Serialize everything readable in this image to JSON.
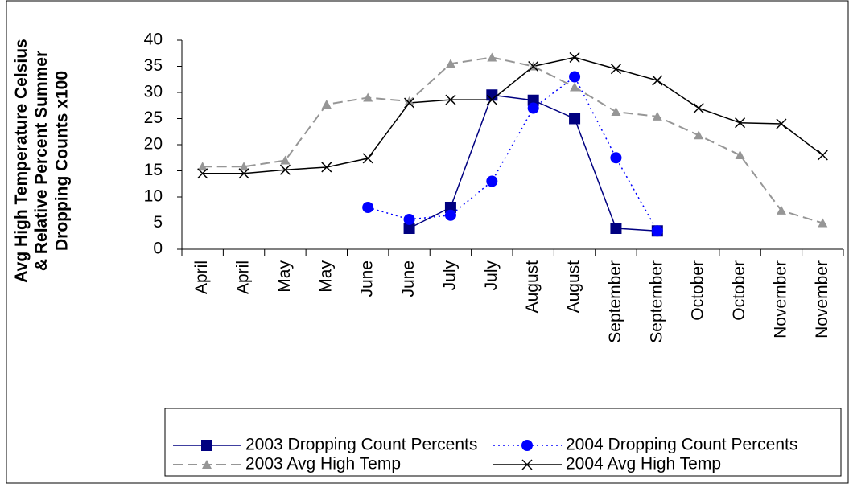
{
  "chart_data": {
    "type": "line",
    "y_label": "Avg High Temperature Celsius & Relative Percent Summer Dropping Counts x100",
    "categories": [
      "April",
      "April",
      "May",
      "May",
      "June",
      "June",
      "July",
      "July",
      "August",
      "August",
      "September",
      "September",
      "October",
      "October",
      "November",
      "November"
    ],
    "ylim": [
      0,
      40
    ],
    "yticks": [
      0,
      5,
      10,
      15,
      20,
      25,
      30,
      35,
      40
    ],
    "series": [
      {
        "name": "2003 Dropping Count Percents",
        "color": "#000080",
        "marker": "square",
        "dash": "solid",
        "values": [
          null,
          null,
          null,
          null,
          null,
          4,
          8,
          29.5,
          28.5,
          25,
          4,
          3.5,
          null,
          null,
          null,
          null
        ]
      },
      {
        "name": "2004 Dropping Count Percents",
        "color": "#0000ff",
        "marker": "circle",
        "dash": "dotted",
        "values": [
          null,
          null,
          null,
          null,
          8,
          5.7,
          6.5,
          13,
          27,
          33,
          17.5,
          3.5,
          null,
          null,
          null,
          null
        ]
      },
      {
        "name": "2003 Avg High Temp",
        "color": "#969696",
        "marker": "triangle",
        "dash": "dashed",
        "values": [
          15.8,
          15.8,
          17,
          27.7,
          29,
          28.3,
          35.5,
          36.7,
          35,
          31,
          26.3,
          25.4,
          21.8,
          18,
          7.4,
          5
        ]
      },
      {
        "name": "2004 Avg High Temp",
        "color": "#000000",
        "marker": "x",
        "dash": "solid",
        "values": [
          14.5,
          14.5,
          15.2,
          15.7,
          17.4,
          28,
          28.6,
          28.6,
          35,
          36.7,
          34.5,
          32.3,
          27,
          24.2,
          24,
          18
        ]
      }
    ]
  }
}
